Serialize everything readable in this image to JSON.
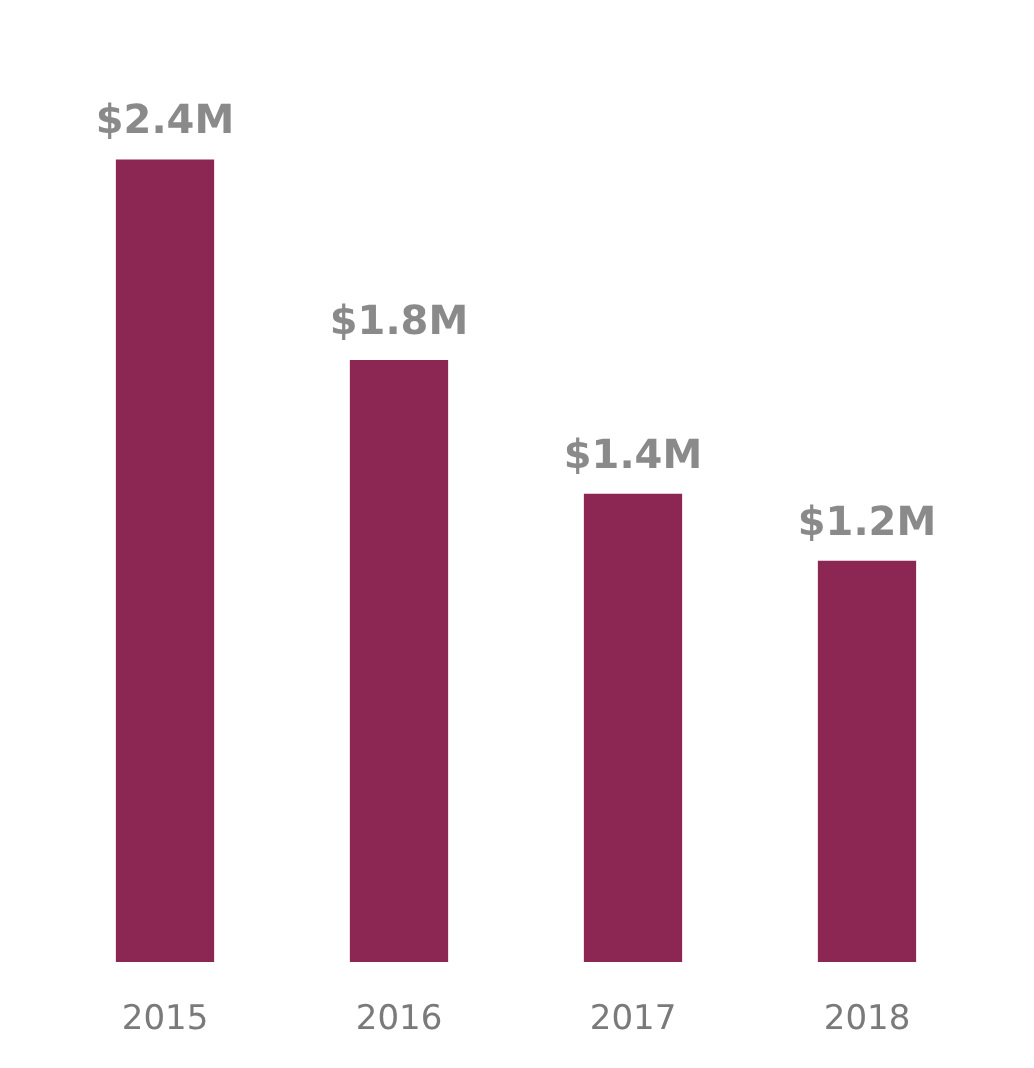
{
  "chart_data": {
    "type": "bar",
    "categories": [
      "2015",
      "2016",
      "2017",
      "2018"
    ],
    "values": [
      2.4,
      1.8,
      1.4,
      1.2
    ],
    "value_labels": [
      "$2.4M",
      "$1.8M",
      "$1.4M",
      "$1.2M"
    ],
    "color": "#8b2752"
  }
}
